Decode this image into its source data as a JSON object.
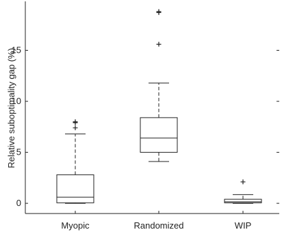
{
  "chart_data": {
    "type": "box",
    "title": "",
    "xlabel": "",
    "ylabel": "Relative suboptimality gap (%)",
    "ylim": [
      -1,
      19.8
    ],
    "yticks": [
      0,
      5,
      10,
      15
    ],
    "grid": false,
    "categories": [
      "Myopic",
      "Randomized",
      "WIP"
    ],
    "boxes": [
      {
        "label": "Myopic",
        "min": 0.0,
        "q1": 0.05,
        "median": 0.6,
        "q3": 2.8,
        "max": 6.8,
        "outliers": [
          7.4,
          7.9,
          8.0
        ]
      },
      {
        "label": "Randomized",
        "min": 4.1,
        "q1": 5.0,
        "median": 6.4,
        "q3": 8.4,
        "max": 11.8,
        "outliers": [
          15.6,
          18.7,
          18.8
        ]
      },
      {
        "label": "WIP",
        "min": 0.0,
        "q1": 0.05,
        "median": 0.15,
        "q3": 0.4,
        "max": 0.85,
        "outliers": [
          2.1
        ]
      }
    ]
  }
}
